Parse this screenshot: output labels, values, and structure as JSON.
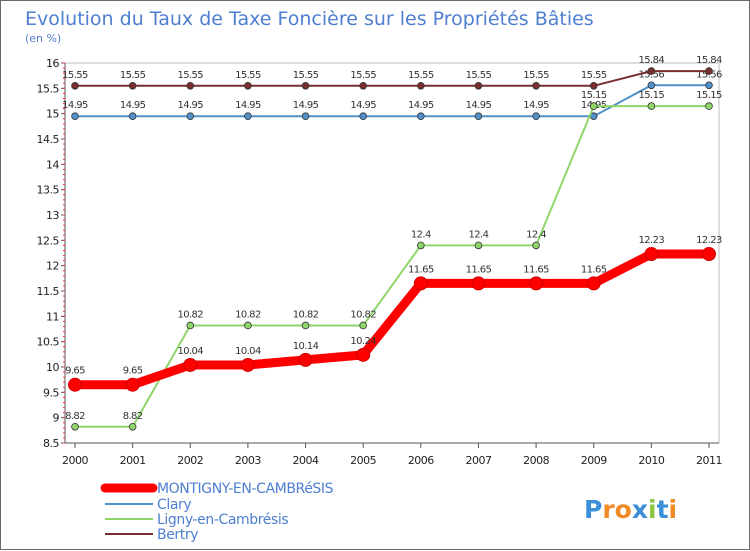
{
  "chart_data": {
    "type": "line",
    "title": "Evolution du Taux de Taxe Foncière sur les Propriétés Bâties",
    "subtitle": "(en %)",
    "xlabel": "",
    "ylabel": "",
    "x": [
      "2000",
      "2001",
      "2002",
      "2003",
      "2004",
      "2005",
      "2006",
      "2007",
      "2008",
      "2009",
      "2010",
      "2011"
    ],
    "ylim": [
      8.5,
      16
    ],
    "yticks": [
      "8.5",
      "9",
      "9.5",
      "10",
      "10.5",
      "11",
      "11.5",
      "12",
      "12.5",
      "13",
      "13.5",
      "14",
      "14.5",
      "15",
      "15.5",
      "16"
    ],
    "grid": false,
    "legend_position": "bottom-left",
    "series": [
      {
        "name": "MONTIGNY-EN-CAMBRéSIS",
        "color": "#ff0000",
        "values": [
          9.65,
          9.65,
          10.04,
          10.04,
          10.14,
          10.24,
          11.65,
          11.65,
          11.65,
          11.65,
          12.23,
          12.23
        ],
        "labels": [
          "9.65",
          "9.65",
          "10.04",
          "10.04",
          "10.14",
          "10.24",
          "11.65",
          "11.65",
          "11.65",
          "11.65",
          "12.23",
          "12.23"
        ]
      },
      {
        "name": "Clary",
        "color": "#4f91c8",
        "values": [
          14.95,
          14.95,
          14.95,
          14.95,
          14.95,
          14.95,
          14.95,
          14.95,
          14.95,
          14.95,
          15.56,
          15.56
        ],
        "labels": [
          "14.95",
          "14.95",
          "14.95",
          "14.95",
          "14.95",
          "14.95",
          "14.95",
          "14.95",
          "14.95",
          "14.95",
          "15.56",
          "15.56"
        ]
      },
      {
        "name": "Ligny-en-Cambrésis",
        "color": "#8fd66a",
        "values": [
          8.82,
          8.82,
          10.82,
          10.82,
          10.82,
          10.82,
          12.4,
          12.4,
          12.4,
          15.15,
          15.15,
          15.15
        ],
        "labels": [
          "8.82",
          "8.82",
          "10.82",
          "10.82",
          "10.82",
          "10.82",
          "12.4",
          "12.4",
          "12.4",
          "15.15",
          "15.15",
          "15.15"
        ]
      },
      {
        "name": "Bertry",
        "color": "#7a2f2f",
        "values": [
          15.55,
          15.55,
          15.55,
          15.55,
          15.55,
          15.55,
          15.55,
          15.55,
          15.55,
          15.55,
          15.84,
          15.84
        ],
        "labels": [
          "15.55",
          "15.55",
          "15.55",
          "15.55",
          "15.55",
          "15.55",
          "15.55",
          "15.55",
          "15.55",
          "15.55",
          "15.84",
          "15.84"
        ]
      }
    ],
    "brand": {
      "text": "Proxiti",
      "letter_colors": [
        "#3b8ed8",
        "#f08a24",
        "#f08a24",
        "#3b8ed8",
        "#8bc83f",
        "#3b8ed8",
        "#f08a24"
      ]
    }
  }
}
